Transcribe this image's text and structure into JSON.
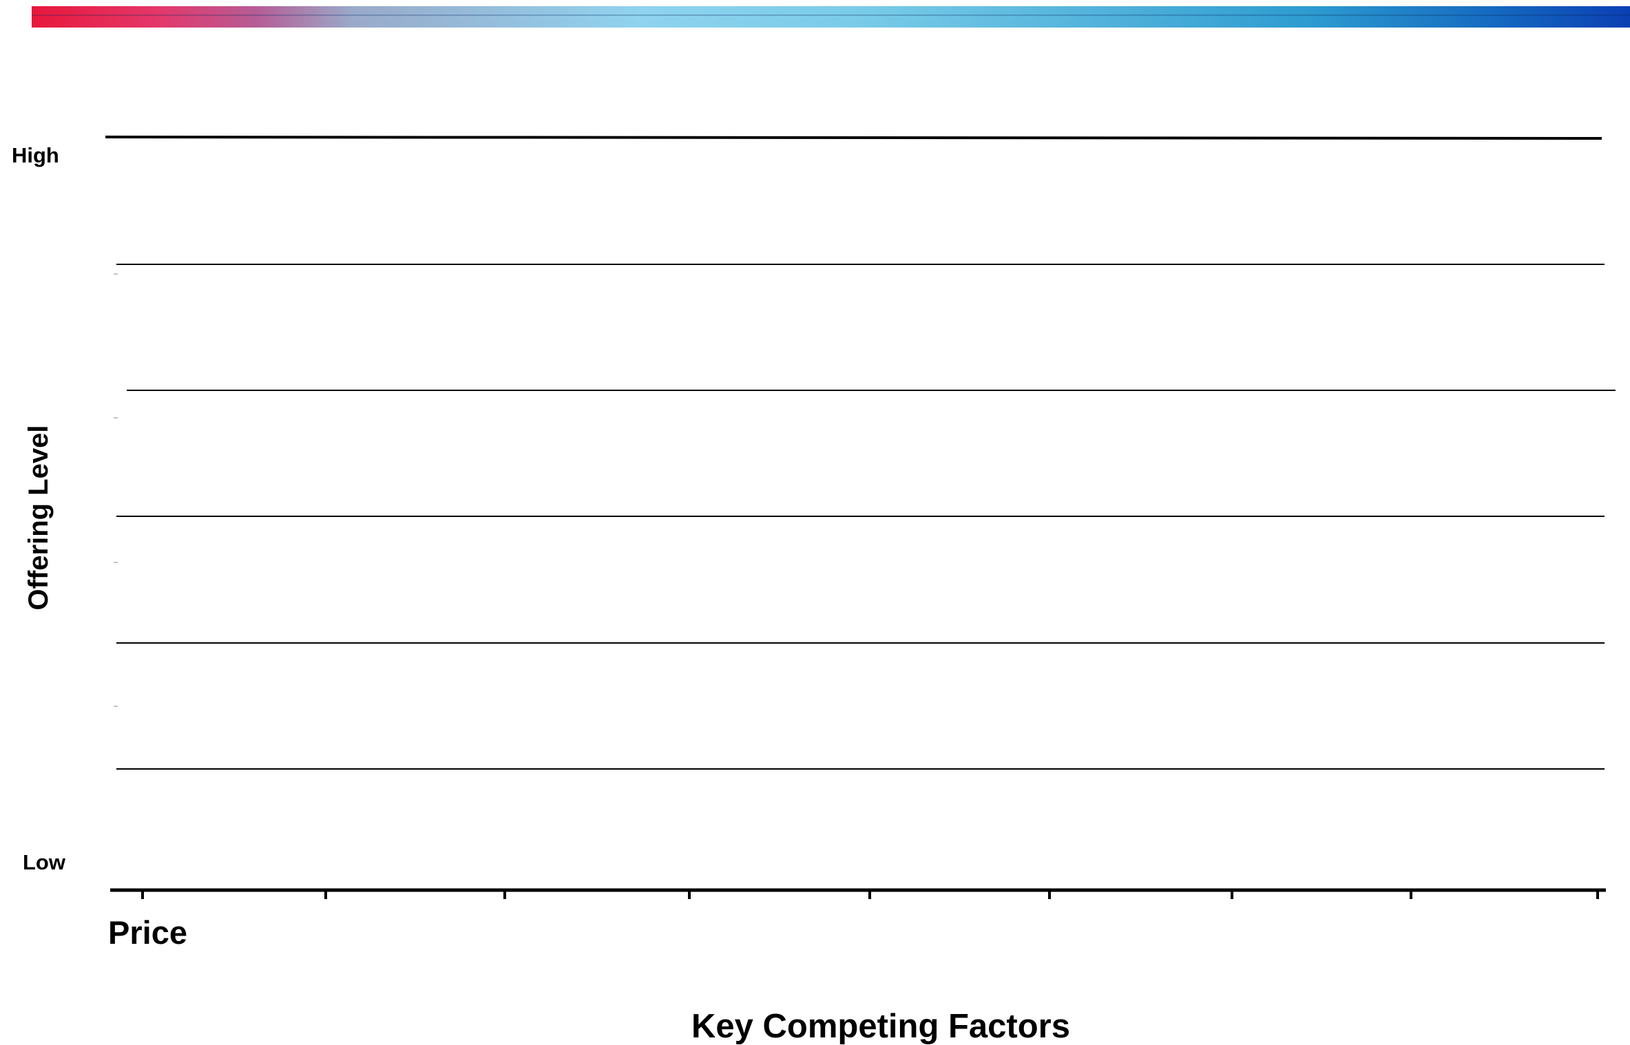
{
  "y_axis": {
    "high_label": "High",
    "low_label": "Low",
    "title": "Offering Level"
  },
  "x_axis": {
    "title": "Key Competing Factors",
    "factors": [
      "Price"
    ]
  },
  "colors": {
    "header_gradient": [
      "#e8173b",
      "#8fd3ef",
      "#0b3fb3"
    ],
    "lines": "#000000"
  }
}
